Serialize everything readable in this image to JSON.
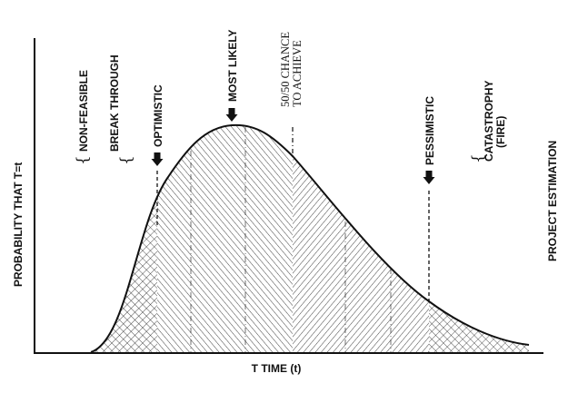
{
  "figure": {
    "side_title": "PROJECT ESTIMATION",
    "y_axis_label": "PROBABILITY THAT T=t",
    "x_axis_label": "T TIME (t)"
  },
  "markers": {
    "non_feasible": "NON-FEASIBLE",
    "break_through": "BREAK THROUGH",
    "optimistic": "OPTIMISTIC",
    "most_likely": "MOST LIKELY",
    "fifty_fifty_line1": "50/50 CHANCE",
    "fifty_fifty_line2": "TO ACHIEVE",
    "pessimistic": "PESSIMISTIC",
    "catastrophy_line1": "CATASTROPHY",
    "catastrophy_line2": "(FIRE)"
  },
  "glyphs": {
    "brace": "{"
  },
  "regions": [
    {
      "name": "crosshatch-left",
      "pattern": "crosshatch"
    },
    {
      "name": "diagonal-rising",
      "pattern": "diagonal-up"
    },
    {
      "name": "diagonal-falling",
      "pattern": "diagonal-down"
    },
    {
      "name": "crosshatch-right",
      "pattern": "crosshatch"
    }
  ],
  "colors": {
    "ink": "#111111",
    "background": "#ffffff"
  }
}
